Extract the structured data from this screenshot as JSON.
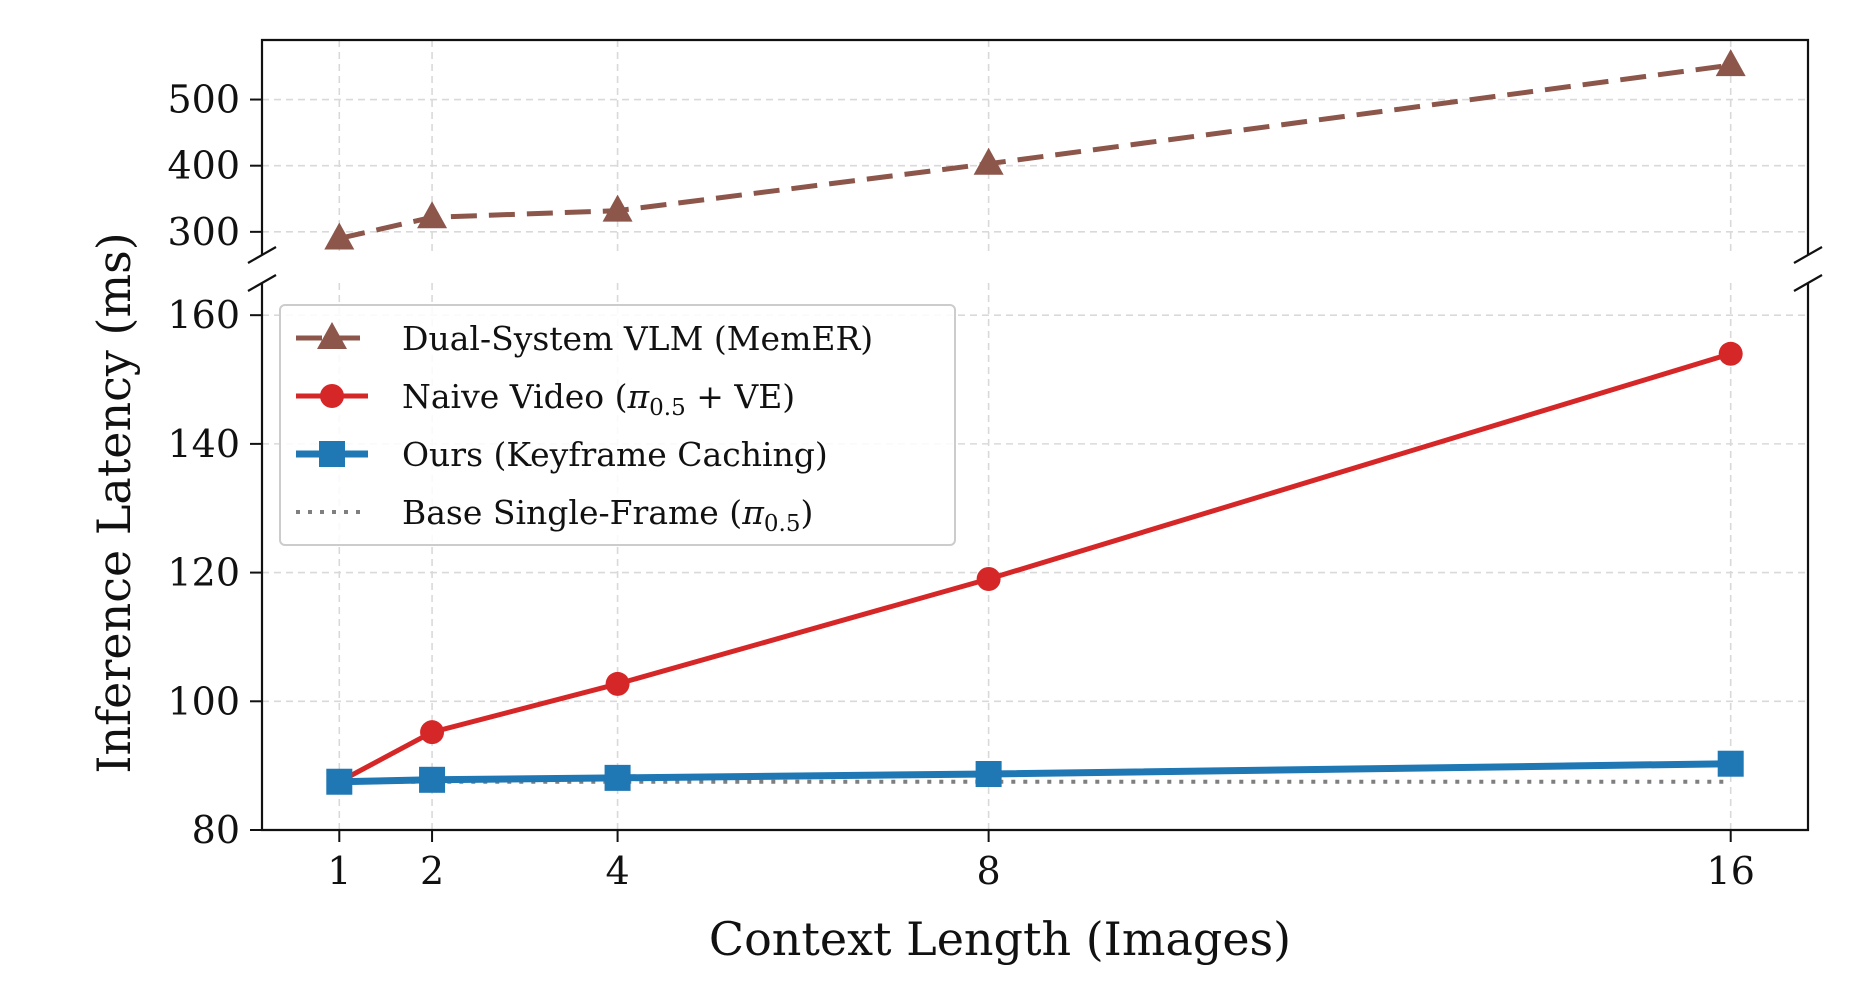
{
  "chart_data": {
    "type": "line",
    "title": "",
    "xlabel": "Context Length (Images)",
    "ylabel": "Inference Latency (ms)",
    "x": [
      1,
      2,
      4,
      8,
      16
    ],
    "x_ticks": [
      "1",
      "2",
      "4",
      "8",
      "16"
    ],
    "y_axis_broken": true,
    "ylim_lower": [
      80,
      165
    ],
    "ylim_upper": [
      265,
      590
    ],
    "y_ticks_lower": [
      "80",
      "100",
      "120",
      "140",
      "160"
    ],
    "y_ticks_upper": [
      "300",
      "400",
      "500"
    ],
    "grid": true,
    "legend_position": "upper-left",
    "series": [
      {
        "name": "Dual-System VLM (MemER)",
        "values": [
          290,
          322,
          332,
          403,
          552
        ],
        "color": "#8c564b",
        "marker": "triangle",
        "linestyle": "dashed",
        "panel": "upper"
      },
      {
        "name": "Naive Video (π0.5 + VE)",
        "values": [
          87.5,
          95.2,
          102.7,
          119,
          154
        ],
        "color": "#d62728",
        "marker": "circle",
        "linestyle": "solid",
        "panel": "lower"
      },
      {
        "name": "Ours (Keyframe Caching)",
        "values": [
          87.5,
          87.8,
          88.1,
          88.7,
          90.3
        ],
        "color": "#1f77b4",
        "marker": "square",
        "linestyle": "solid",
        "panel": "lower"
      },
      {
        "name": "Base Single-Frame (π0.5)",
        "values": [
          87.5,
          87.5,
          87.5,
          87.5,
          87.5
        ],
        "color": "#7f7f7f",
        "marker": "none",
        "linestyle": "dotted",
        "panel": "lower"
      }
    ],
    "legend": [
      {
        "base": "Dual-System VLM (MemER)",
        "pi": "",
        "sub": "",
        "tail": ""
      },
      {
        "base": "Naive Video (",
        "pi": "π",
        "sub": "0.5",
        "tail": " + VE)"
      },
      {
        "base": "Ours (Keyframe Caching)",
        "pi": "",
        "sub": "",
        "tail": ""
      },
      {
        "base": "Base Single-Frame (",
        "pi": "π",
        "sub": "0.5",
        "tail": ")"
      }
    ]
  }
}
